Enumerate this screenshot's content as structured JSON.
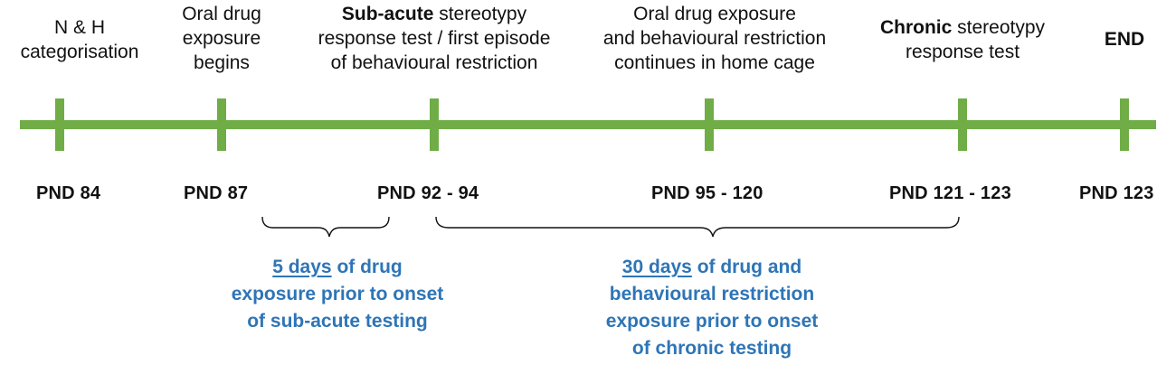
{
  "colors": {
    "timeline": "#70AD47",
    "note_text": "#2E75B6",
    "text": "#111111"
  },
  "events": [
    {
      "lines": [
        "N & H",
        "categorisation"
      ]
    },
    {
      "lines": [
        "Oral drug",
        "exposure",
        "begins"
      ]
    },
    {
      "bold": "Sub-acute",
      "lines": [
        " stereotypy",
        "response test / first episode",
        "of behavioural restriction"
      ]
    },
    {
      "lines": [
        "Oral drug exposure",
        "and behavioural restriction",
        "continues in home cage"
      ]
    },
    {
      "bold": "Chronic",
      "lines": [
        " stereotypy",
        "response test"
      ]
    },
    {
      "bold": "END",
      "lines": [
        ""
      ]
    }
  ],
  "pnd_labels": [
    "PND 84",
    "PND 87",
    "PND 92 - 94",
    "PND 95 - 120",
    "PND 121 - 123",
    "PND 123"
  ],
  "notes": [
    {
      "underlined": "5 days",
      "lines": [
        " of drug",
        "exposure prior to onset",
        "of sub-acute testing"
      ]
    },
    {
      "underlined": "30 days",
      "lines": [
        " of drug and",
        "behavioural restriction",
        "exposure prior to onset",
        "of chronic testing"
      ]
    }
  ]
}
